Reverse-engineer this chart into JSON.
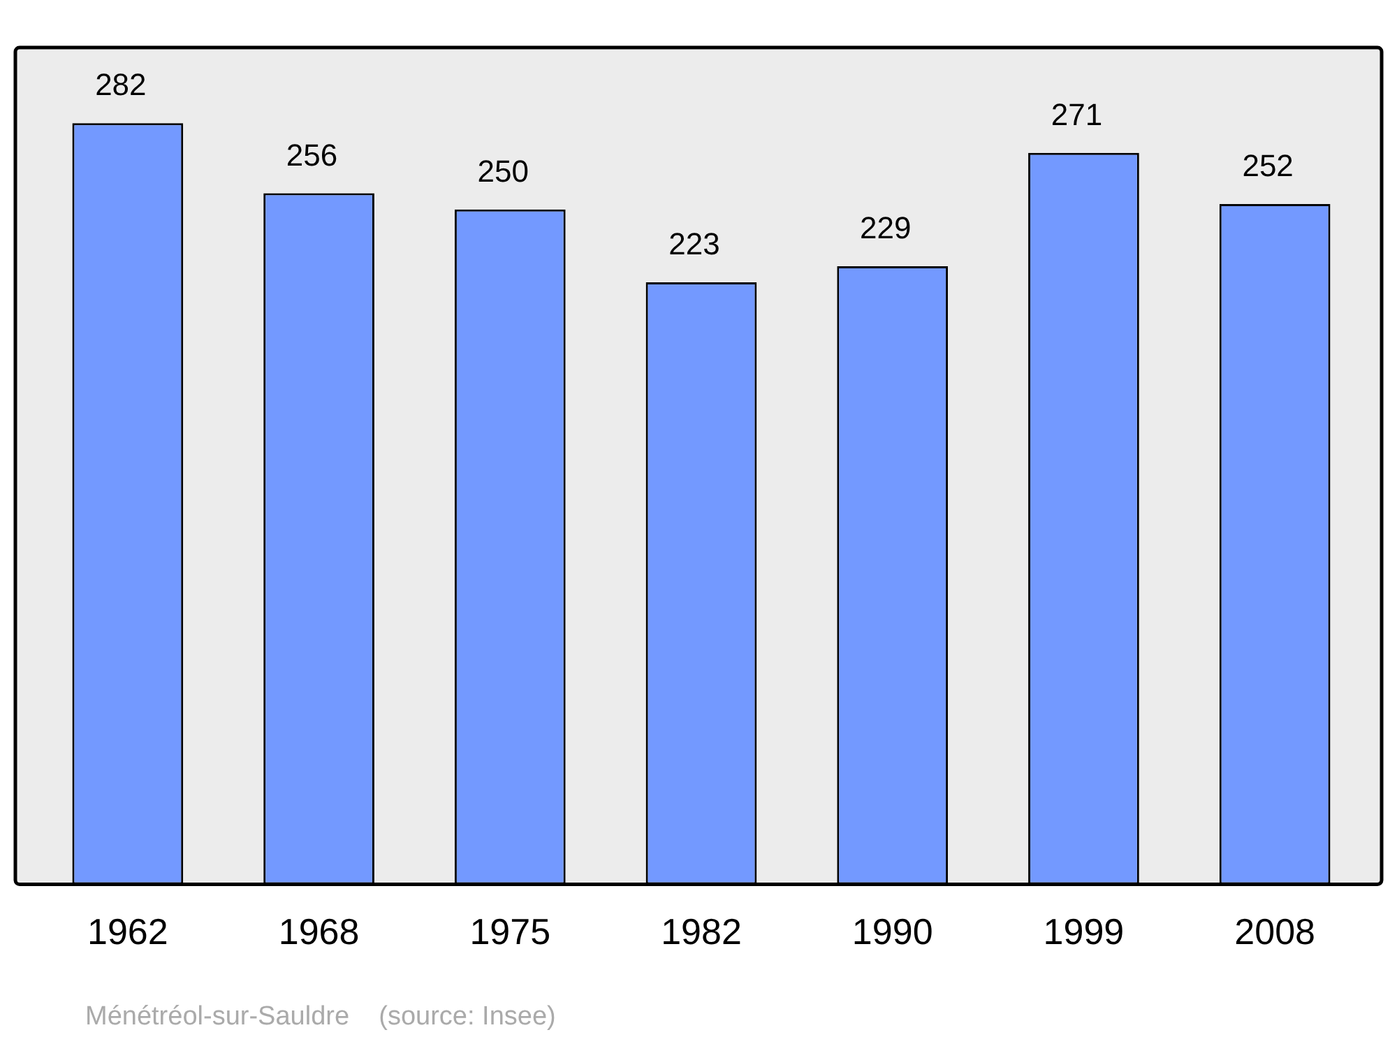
{
  "chart_data": {
    "type": "bar",
    "categories": [
      "1962",
      "1968",
      "1975",
      "1982",
      "1990",
      "1999",
      "2008"
    ],
    "values": [
      282,
      256,
      250,
      223,
      229,
      271,
      252
    ],
    "color": "#7399ff",
    "ylim": [
      0,
      310
    ],
    "data_labels": true,
    "grid": false,
    "legend": false,
    "annotations": [
      "Ménétréol-sur-Sauldre    (source: Insee)"
    ]
  }
}
